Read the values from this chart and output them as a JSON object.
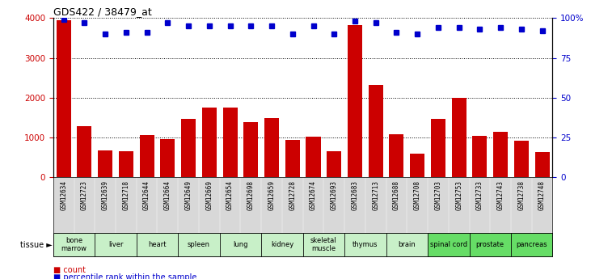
{
  "title": "GDS422 / 38479_at",
  "samples": [
    "GSM12634",
    "GSM12723",
    "GSM12639",
    "GSM12718",
    "GSM12644",
    "GSM12664",
    "GSM12649",
    "GSM12669",
    "GSM12654",
    "GSM12698",
    "GSM12659",
    "GSM12728",
    "GSM12674",
    "GSM12693",
    "GSM12683",
    "GSM12713",
    "GSM12688",
    "GSM12708",
    "GSM12703",
    "GSM12753",
    "GSM12733",
    "GSM12743",
    "GSM12738",
    "GSM12748"
  ],
  "counts": [
    3950,
    1280,
    680,
    660,
    1060,
    960,
    1470,
    1760,
    1760,
    1390,
    1480,
    930,
    1020,
    660,
    3820,
    2320,
    1080,
    600,
    1460,
    2000,
    1040,
    1150,
    920,
    630
  ],
  "percentiles": [
    99,
    97,
    90,
    91,
    91,
    97,
    95,
    95,
    95,
    95,
    95,
    90,
    95,
    90,
    98,
    97,
    91,
    90,
    94,
    94,
    93,
    94,
    93,
    92
  ],
  "tissues": [
    {
      "label": "bone\nmarrow",
      "start": 0,
      "end": 2,
      "color": "#c8f0c8"
    },
    {
      "label": "liver",
      "start": 2,
      "end": 4,
      "color": "#c8f0c8"
    },
    {
      "label": "heart",
      "start": 4,
      "end": 6,
      "color": "#c8f0c8"
    },
    {
      "label": "spleen",
      "start": 6,
      "end": 8,
      "color": "#c8f0c8"
    },
    {
      "label": "lung",
      "start": 8,
      "end": 10,
      "color": "#c8f0c8"
    },
    {
      "label": "kidney",
      "start": 10,
      "end": 12,
      "color": "#c8f0c8"
    },
    {
      "label": "skeletal\nmuscle",
      "start": 12,
      "end": 14,
      "color": "#c8f0c8"
    },
    {
      "label": "thymus",
      "start": 14,
      "end": 16,
      "color": "#c8f0c8"
    },
    {
      "label": "brain",
      "start": 16,
      "end": 18,
      "color": "#c8f0c8"
    },
    {
      "label": "spinal cord",
      "start": 18,
      "end": 20,
      "color": "#66dd66"
    },
    {
      "label": "prostate",
      "start": 20,
      "end": 22,
      "color": "#66dd66"
    },
    {
      "label": "pancreas",
      "start": 22,
      "end": 24,
      "color": "#66dd66"
    }
  ],
  "bar_color": "#cc0000",
  "dot_color": "#0000cc",
  "ylim_left": [
    0,
    4000
  ],
  "ylim_right": [
    0,
    100
  ],
  "yticks_left": [
    0,
    1000,
    2000,
    3000,
    4000
  ],
  "yticks_right": [
    0,
    25,
    50,
    75,
    100
  ],
  "sample_bg": "#d8d8d8",
  "plot_bg": "#ffffff"
}
